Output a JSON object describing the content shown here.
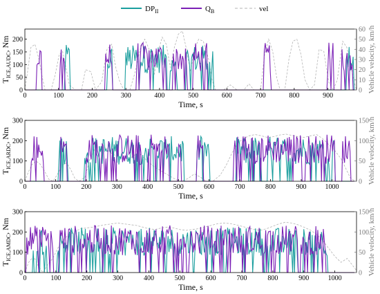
{
  "colors": {
    "dp": "#1a9e9e",
    "qb": "#7a1fb5",
    "vel": "#b3b3b3",
    "axis": "#000000",
    "right_axis": "#7a7a7a"
  },
  "legend": {
    "items": [
      {
        "main": "DP",
        "sub": "II",
        "key": "dp"
      },
      {
        "main": "Q",
        "sub": "B",
        "key": "qb"
      },
      {
        "main": "vel",
        "sub": "",
        "key": "vel"
      }
    ]
  },
  "chart_data": [
    {
      "type": "line",
      "cycle": "AUDC",
      "xlabel": "Time, s",
      "ylabel_main": "T",
      "ylabel_sub": "ICE,AUDC",
      "ylabel_tail": ", Nm",
      "y2label": "Vehicle velocity, km/h",
      "xlim": [
        0,
        985
      ],
      "ylim": [
        0,
        240
      ],
      "y2lim": [
        0,
        60
      ],
      "xticks": [
        0,
        100,
        200,
        300,
        400,
        500,
        600,
        700,
        800,
        900
      ],
      "yticks": [
        0,
        50,
        100,
        150,
        200
      ],
      "y2ticks": [
        0,
        10,
        20,
        30,
        40,
        50,
        60
      ],
      "vel_points": [
        [
          0,
          0
        ],
        [
          8,
          18
        ],
        [
          18,
          42
        ],
        [
          30,
          45
        ],
        [
          42,
          30
        ],
        [
          52,
          12
        ],
        [
          60,
          0
        ],
        [
          78,
          0
        ],
        [
          90,
          15
        ],
        [
          102,
          35
        ],
        [
          112,
          38
        ],
        [
          122,
          22
        ],
        [
          132,
          5
        ],
        [
          150,
          0
        ],
        [
          168,
          0
        ],
        [
          180,
          20
        ],
        [
          196,
          18
        ],
        [
          210,
          0
        ],
        [
          228,
          8
        ],
        [
          244,
          40
        ],
        [
          258,
          45
        ],
        [
          270,
          22
        ],
        [
          282,
          8
        ],
        [
          294,
          0
        ],
        [
          312,
          0
        ],
        [
          328,
          18
        ],
        [
          342,
          40
        ],
        [
          356,
          50
        ],
        [
          372,
          38
        ],
        [
          384,
          15
        ],
        [
          396,
          38
        ],
        [
          408,
          52
        ],
        [
          420,
          45
        ],
        [
          432,
          22
        ],
        [
          444,
          42
        ],
        [
          456,
          55
        ],
        [
          468,
          58
        ],
        [
          480,
          40
        ],
        [
          492,
          18
        ],
        [
          504,
          40
        ],
        [
          516,
          50
        ],
        [
          530,
          48
        ],
        [
          546,
          30
        ],
        [
          556,
          10
        ],
        [
          566,
          0
        ],
        [
          590,
          0
        ],
        [
          610,
          5
        ],
        [
          630,
          0
        ],
        [
          650,
          0
        ],
        [
          666,
          6
        ],
        [
          680,
          0
        ],
        [
          700,
          0
        ],
        [
          712,
          35
        ],
        [
          724,
          50
        ],
        [
          736,
          38
        ],
        [
          748,
          12
        ],
        [
          758,
          0
        ],
        [
          772,
          0
        ],
        [
          784,
          30
        ],
        [
          796,
          48
        ],
        [
          808,
          50
        ],
        [
          820,
          35
        ],
        [
          832,
          10
        ],
        [
          846,
          0
        ],
        [
          860,
          5
        ],
        [
          874,
          40
        ],
        [
          888,
          38
        ],
        [
          902,
          8
        ],
        [
          916,
          0
        ],
        [
          928,
          10
        ],
        [
          944,
          48
        ],
        [
          956,
          42
        ],
        [
          968,
          25
        ],
        [
          978,
          8
        ],
        [
          985,
          0
        ]
      ]
    },
    {
      "type": "line",
      "cycle": "ARDC",
      "xlabel": "Time, s",
      "ylabel_main": "T",
      "ylabel_sub": "ICE,ARDC",
      "ylabel_tail": ", Nm",
      "y2label": "Vehicle velocity, km/h",
      "xlim": [
        0,
        1080
      ],
      "ylim": [
        0,
        300
      ],
      "y2lim": [
        0,
        150
      ],
      "xticks": [
        0,
        100,
        200,
        300,
        400,
        500,
        600,
        700,
        800,
        900,
        1000
      ],
      "yticks": [
        0,
        100,
        200,
        300
      ],
      "y2ticks": [
        0,
        50,
        100,
        150
      ],
      "vel_points": [
        [
          0,
          0
        ],
        [
          10,
          20
        ],
        [
          22,
          40
        ],
        [
          36,
          50
        ],
        [
          50,
          42
        ],
        [
          64,
          25
        ],
        [
          78,
          5
        ],
        [
          92,
          0
        ],
        [
          108,
          20
        ],
        [
          122,
          40
        ],
        [
          136,
          45
        ],
        [
          150,
          28
        ],
        [
          162,
          8
        ],
        [
          176,
          0
        ],
        [
          196,
          10
        ],
        [
          212,
          55
        ],
        [
          228,
          80
        ],
        [
          244,
          85
        ],
        [
          262,
          82
        ],
        [
          280,
          70
        ],
        [
          298,
          62
        ],
        [
          316,
          55
        ],
        [
          334,
          50
        ],
        [
          352,
          62
        ],
        [
          370,
          70
        ],
        [
          388,
          58
        ],
        [
          406,
          45
        ],
        [
          422,
          35
        ],
        [
          438,
          28
        ],
        [
          456,
          20
        ],
        [
          474,
          12
        ],
        [
          490,
          5
        ],
        [
          506,
          0
        ],
        [
          530,
          6
        ],
        [
          552,
          18
        ],
        [
          572,
          10
        ],
        [
          590,
          0
        ],
        [
          612,
          0
        ],
        [
          636,
          15
        ],
        [
          656,
          40
        ],
        [
          676,
          72
        ],
        [
          694,
          95
        ],
        [
          712,
          105
        ],
        [
          730,
          112
        ],
        [
          750,
          115
        ],
        [
          770,
          112
        ],
        [
          790,
          108
        ],
        [
          810,
          110
        ],
        [
          830,
          114
        ],
        [
          850,
          116
        ],
        [
          870,
          113
        ],
        [
          890,
          110
        ],
        [
          910,
          108
        ],
        [
          930,
          112
        ],
        [
          950,
          115
        ],
        [
          970,
          105
        ],
        [
          990,
          90
        ],
        [
          1010,
          75
        ],
        [
          1030,
          55
        ],
        [
          1046,
          30
        ],
        [
          1060,
          8
        ],
        [
          1076,
          0
        ]
      ]
    },
    {
      "type": "line",
      "cycle": "AMDC",
      "xlabel": "Time, s",
      "ylabel_main": "T",
      "ylabel_sub": "ICE,AMDC",
      "ylabel_tail": ", Nm",
      "y2label": "Vehicle velocity, km/h",
      "xlim": [
        0,
        1070
      ],
      "ylim": [
        0,
        300
      ],
      "y2lim": [
        0,
        150
      ],
      "xticks": [
        0,
        100,
        200,
        300,
        400,
        500,
        600,
        700,
        800,
        900,
        1000
      ],
      "yticks": [
        0,
        100,
        200,
        300
      ],
      "y2ticks": [
        0,
        50,
        100,
        150
      ],
      "vel_points": [
        [
          0,
          0
        ],
        [
          12,
          25
        ],
        [
          28,
          40
        ],
        [
          42,
          18
        ],
        [
          58,
          0
        ],
        [
          74,
          20
        ],
        [
          90,
          35
        ],
        [
          106,
          60
        ],
        [
          122,
          80
        ],
        [
          140,
          92
        ],
        [
          160,
          100
        ],
        [
          180,
          108
        ],
        [
          200,
          110
        ],
        [
          220,
          112
        ],
        [
          240,
          115
        ],
        [
          260,
          118
        ],
        [
          280,
          120
        ],
        [
          300,
          122
        ],
        [
          320,
          120
        ],
        [
          340,
          118
        ],
        [
          360,
          116
        ],
        [
          380,
          112
        ],
        [
          400,
          108
        ],
        [
          420,
          106
        ],
        [
          440,
          110
        ],
        [
          460,
          112
        ],
        [
          480,
          110
        ],
        [
          500,
          106
        ],
        [
          520,
          104
        ],
        [
          540,
          106
        ],
        [
          560,
          108
        ],
        [
          580,
          112
        ],
        [
          600,
          116
        ],
        [
          620,
          120
        ],
        [
          640,
          122
        ],
        [
          660,
          121
        ],
        [
          680,
          118
        ],
        [
          700,
          114
        ],
        [
          720,
          110
        ],
        [
          740,
          106
        ],
        [
          760,
          104
        ],
        [
          780,
          108
        ],
        [
          800,
          114
        ],
        [
          820,
          120
        ],
        [
          840,
          124
        ],
        [
          860,
          122
        ],
        [
          880,
          118
        ],
        [
          900,
          112
        ],
        [
          920,
          105
        ],
        [
          940,
          95
        ],
        [
          960,
          80
        ],
        [
          980,
          60
        ],
        [
          1000,
          40
        ],
        [
          1020,
          25
        ],
        [
          1040,
          35
        ],
        [
          1055,
          20
        ],
        [
          1070,
          5
        ]
      ]
    }
  ]
}
